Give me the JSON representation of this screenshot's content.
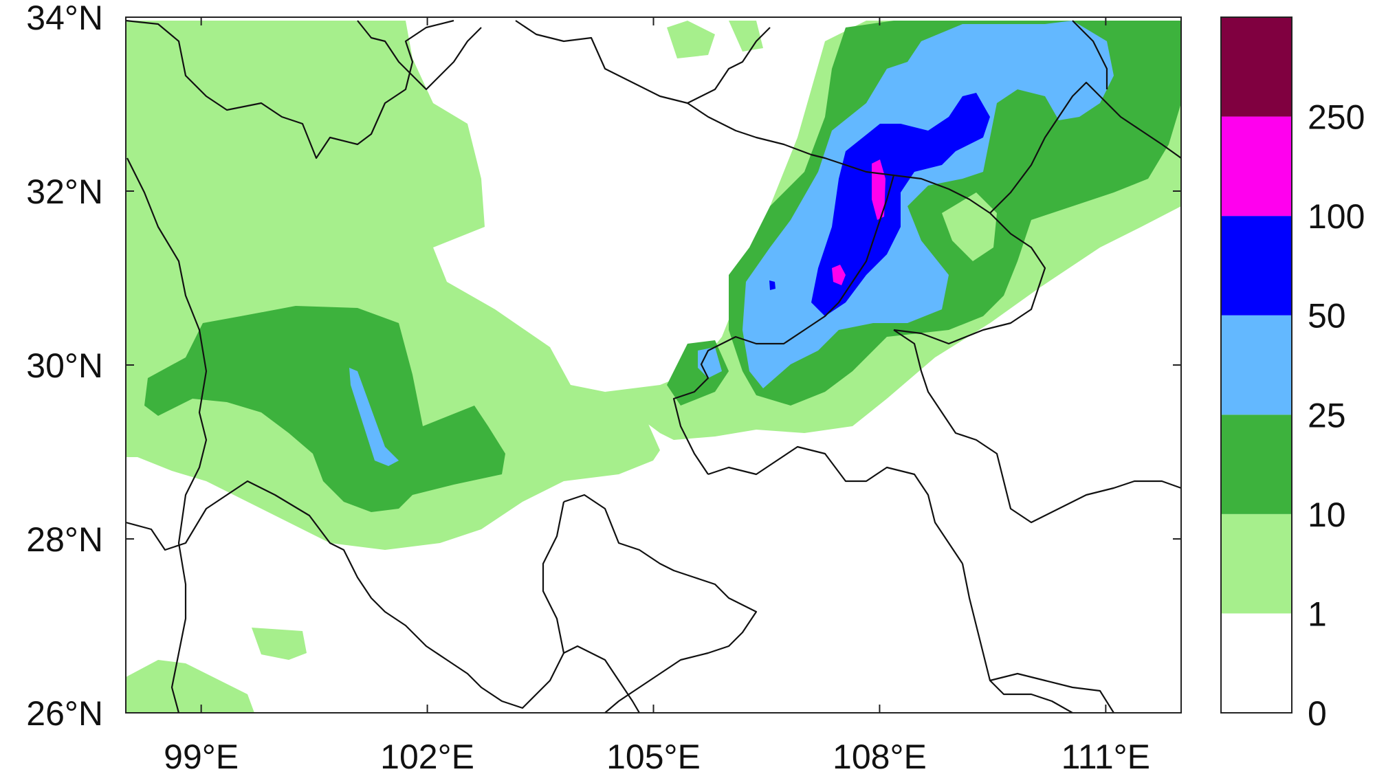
{
  "map": {
    "lon_range": [
      98,
      112
    ],
    "lat_range": [
      26,
      34
    ],
    "lon_ticks": [
      {
        "value": 99,
        "label": "99°E"
      },
      {
        "value": 102,
        "label": "102°E"
      },
      {
        "value": 105,
        "label": "105°E"
      },
      {
        "value": 108,
        "label": "108°E"
      },
      {
        "value": 111,
        "label": "111°E"
      }
    ],
    "lat_ticks": [
      {
        "value": 26,
        "label": "26°N"
      },
      {
        "value": 28,
        "label": "28°N"
      },
      {
        "value": 30,
        "label": "30°N"
      },
      {
        "value": 32,
        "label": "32°N"
      },
      {
        "value": 34,
        "label": "34°N"
      }
    ]
  },
  "colorbar": {
    "levels": [
      {
        "label": "0",
        "color": "#ffffff"
      },
      {
        "label": "1",
        "color": "#a6ef8c"
      },
      {
        "label": "10",
        "color": "#3db23d"
      },
      {
        "label": "25",
        "color": "#63b8ff"
      },
      {
        "label": "50",
        "color": "#0000ff"
      },
      {
        "label": "100",
        "color": "#ff00ee"
      },
      {
        "label": "250",
        "color": "#800040"
      }
    ]
  }
}
